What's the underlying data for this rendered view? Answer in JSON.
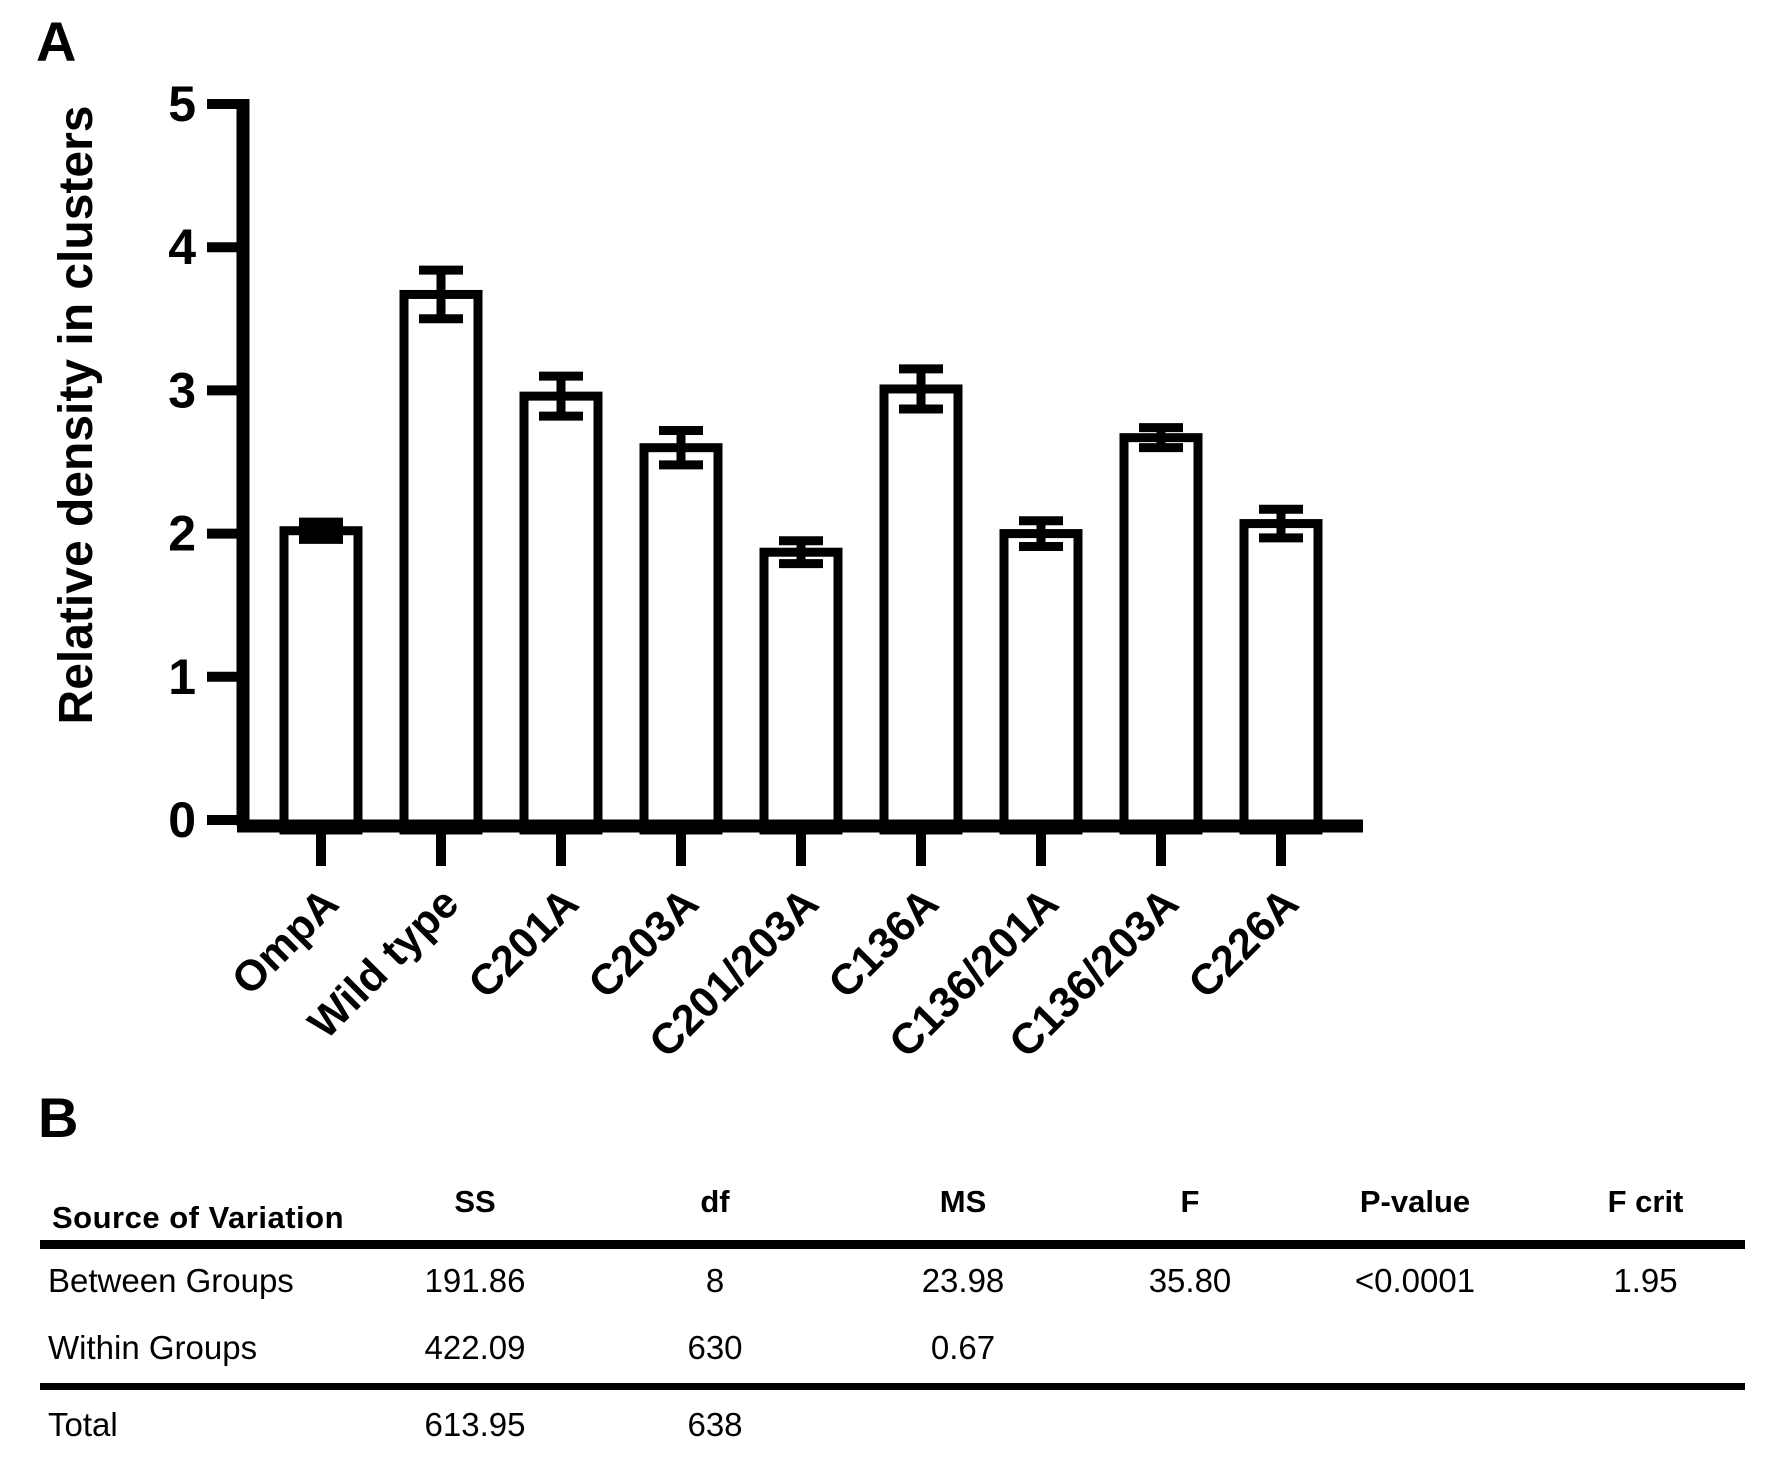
{
  "panels": {
    "a_label": "A",
    "b_label": "B"
  },
  "chart_data": {
    "type": "bar",
    "title": "",
    "xlabel": "",
    "ylabel": "Relative density in clusters",
    "ylim": [
      0,
      5
    ],
    "yticks": [
      0,
      1,
      2,
      3,
      4,
      5
    ],
    "categories": [
      "OmpA",
      "Wild type",
      "C201A",
      "C203A",
      "C201/203A",
      "C136A",
      "C136/201A",
      "C136/203A",
      "C226A"
    ],
    "values": [
      2.02,
      3.67,
      2.96,
      2.6,
      1.87,
      3.01,
      2.0,
      2.67,
      2.07
    ],
    "errors": [
      0.06,
      0.17,
      0.14,
      0.12,
      0.08,
      0.14,
      0.09,
      0.07,
      0.1
    ],
    "error_bar_style": "plus-minus-caps",
    "bar_fill": "#ffffff",
    "bar_stroke": "#000000",
    "grid": false,
    "legend": "none",
    "x_tick_label_rotation": -45
  },
  "anova_table": {
    "headers": [
      "Source of Variation",
      "SS",
      "df",
      "MS",
      "F",
      "P-value",
      "F crit"
    ],
    "rows": [
      {
        "source": "Between Groups",
        "ss": "191.86",
        "df": "8",
        "ms": "23.98",
        "f": "35.80",
        "p_value": "<0.0001",
        "f_crit": "1.95"
      },
      {
        "source": "Within Groups",
        "ss": "422.09",
        "df": "630",
        "ms": "0.67",
        "f": "",
        "p_value": "",
        "f_crit": ""
      },
      {
        "source": "Total",
        "ss": "613.95",
        "df": "638",
        "ms": "",
        "f": "",
        "p_value": "",
        "f_crit": ""
      }
    ]
  }
}
